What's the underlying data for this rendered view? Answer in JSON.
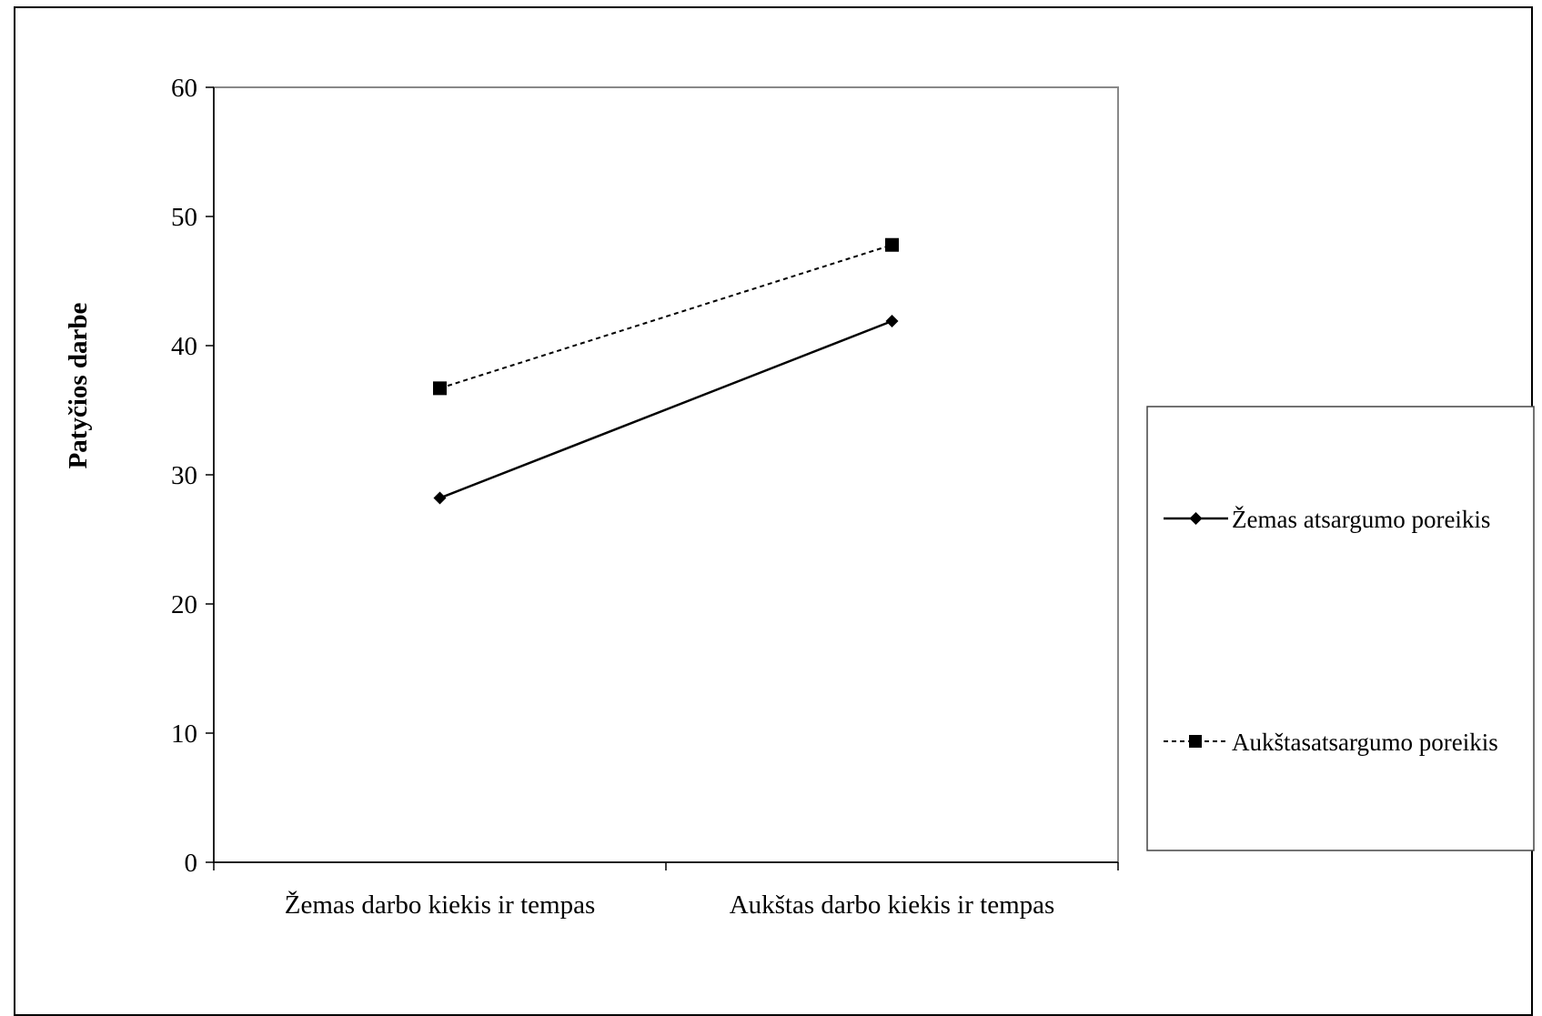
{
  "chart_data": {
    "type": "line",
    "title": "",
    "xlabel": "",
    "ylabel": "Patyčios darbe",
    "ylim": [
      0,
      60
    ],
    "yticks": [
      0,
      10,
      20,
      30,
      40,
      50,
      60
    ],
    "categories": [
      "Žemas darbo kiekis ir tempas",
      "Aukštas darbo kiekis ir tempas"
    ],
    "series": [
      {
        "name": "Žemas atsargumo poreikis",
        "values": [
          28.2,
          41.9
        ],
        "marker": "diamond",
        "line_style": "solid",
        "color": "#000000"
      },
      {
        "name": "Aukštasatsargumo poreikis",
        "values": [
          36.7,
          47.8
        ],
        "marker": "square",
        "line_style": "dashed",
        "color": "#000000"
      }
    ],
    "grid": false,
    "legend_position": "right"
  }
}
